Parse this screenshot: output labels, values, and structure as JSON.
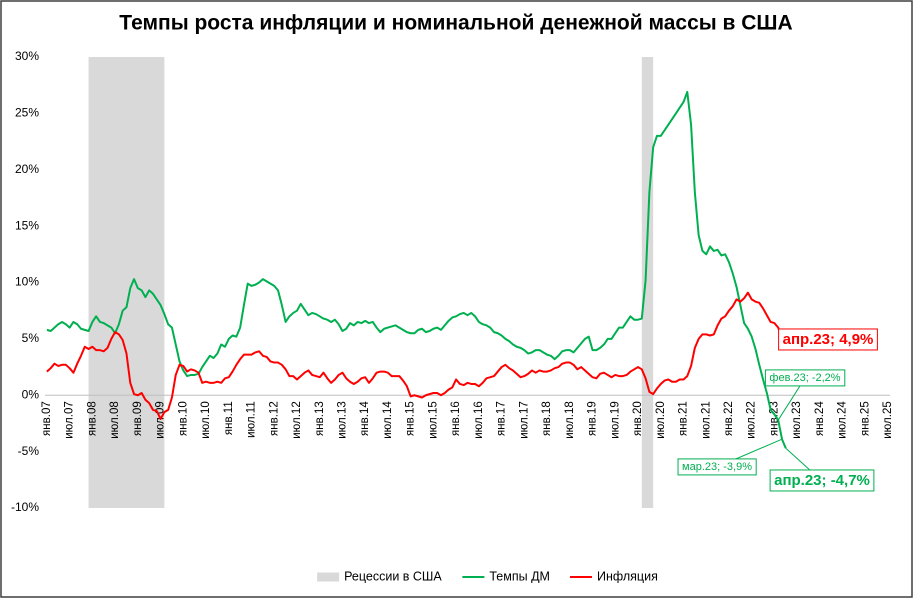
{
  "chart_data": {
    "type": "line",
    "title": "Темпы роста инфляции и номинальной денежной массы в США",
    "categories": [
      "янв.07",
      null,
      null,
      null,
      null,
      null,
      "июл.07",
      null,
      null,
      null,
      null,
      null,
      "янв.08",
      null,
      null,
      null,
      null,
      null,
      "июл.08",
      null,
      null,
      null,
      null,
      null,
      "янв.09",
      null,
      null,
      null,
      null,
      null,
      "июл.09",
      null,
      null,
      null,
      null,
      null,
      "янв.10",
      null,
      null,
      null,
      null,
      null,
      "июл.10",
      null,
      null,
      null,
      null,
      null,
      "янв.11",
      null,
      null,
      null,
      null,
      null,
      "июл.11",
      null,
      null,
      null,
      null,
      null,
      "янв.12",
      null,
      null,
      null,
      null,
      null,
      "июл.12",
      null,
      null,
      null,
      null,
      null,
      "янв.13",
      null,
      null,
      null,
      null,
      null,
      "июл.13",
      null,
      null,
      null,
      null,
      null,
      "янв.14",
      null,
      null,
      null,
      null,
      null,
      "июл.14",
      null,
      null,
      null,
      null,
      null,
      "янв.15",
      null,
      null,
      null,
      null,
      null,
      "июл.15",
      null,
      null,
      null,
      null,
      null,
      "янв.16",
      null,
      null,
      null,
      null,
      null,
      "июл.16",
      null,
      null,
      null,
      null,
      null,
      "янв.17",
      null,
      null,
      null,
      null,
      null,
      "июл.17",
      null,
      null,
      null,
      null,
      null,
      "янв.18",
      null,
      null,
      null,
      null,
      null,
      "июл.18",
      null,
      null,
      null,
      null,
      null,
      "янв.19",
      null,
      null,
      null,
      null,
      null,
      "июл.19",
      null,
      null,
      null,
      null,
      null,
      "янв.20",
      null,
      null,
      null,
      null,
      null,
      "июл.20",
      null,
      null,
      null,
      null,
      null,
      "янв.21",
      null,
      null,
      null,
      null,
      null,
      "июл.21",
      null,
      null,
      null,
      null,
      null,
      "янв.22",
      null,
      null,
      null,
      null,
      null,
      "июл.22",
      null,
      null,
      null,
      null,
      null,
      "янв.23",
      null,
      null,
      null,
      null,
      null,
      "июл.23",
      null,
      null,
      null,
      null,
      null,
      "янв.24",
      null,
      null,
      null,
      null,
      null,
      "июл.24",
      null,
      null,
      null,
      null,
      null,
      "янв.25",
      null,
      null,
      null,
      null,
      null,
      "июл.25"
    ],
    "recession": {
      "name": "Рецессии в США",
      "color": "#d9d9d9",
      "spans": [
        [
          11,
          30
        ],
        [
          157,
          159
        ]
      ]
    },
    "series": [
      {
        "name": "Темпы ДМ",
        "color": "#00b050",
        "values": [
          5.8,
          5.7,
          6.0,
          6.3,
          6.5,
          6.3,
          6.0,
          6.5,
          6.3,
          5.9,
          5.8,
          5.7,
          6.5,
          7.0,
          6.5,
          6.4,
          6.2,
          6.0,
          5.5,
          6.3,
          7.5,
          7.8,
          9.5,
          10.3,
          9.5,
          9.3,
          8.7,
          9.3,
          9.0,
          8.5,
          8.0,
          7.2,
          6.3,
          6.0,
          4.5,
          3.0,
          2.2,
          1.7,
          1.8,
          1.8,
          1.9,
          2.5,
          3.0,
          3.5,
          3.3,
          3.7,
          4.5,
          4.3,
          5.0,
          5.3,
          5.2,
          6.0,
          8.0,
          9.9,
          9.7,
          9.8,
          10.0,
          10.3,
          10.1,
          9.9,
          9.7,
          9.3,
          8.0,
          6.5,
          7.0,
          7.3,
          7.5,
          8.1,
          7.6,
          7.1,
          7.3,
          7.2,
          7.0,
          6.8,
          6.7,
          6.5,
          6.7,
          6.3,
          5.7,
          5.9,
          6.4,
          6.2,
          6.5,
          6.4,
          6.6,
          6.4,
          6.5,
          6.0,
          5.6,
          5.9,
          6.0,
          6.1,
          6.2,
          6.0,
          5.8,
          5.6,
          5.5,
          5.5,
          5.8,
          5.9,
          5.6,
          5.7,
          5.9,
          6.0,
          5.8,
          6.2,
          6.6,
          6.9,
          7.0,
          7.2,
          7.3,
          7.1,
          7.3,
          7.0,
          6.5,
          6.3,
          6.2,
          6.0,
          5.6,
          5.5,
          5.3,
          5.0,
          4.8,
          4.5,
          4.3,
          4.2,
          4.0,
          3.7,
          3.8,
          4.0,
          4.0,
          3.8,
          3.6,
          3.5,
          3.2,
          3.5,
          3.9,
          4.0,
          4.0,
          3.8,
          4.2,
          4.6,
          5.0,
          5.2,
          4.0,
          4.0,
          4.2,
          4.5,
          5.0,
          5.0,
          5.5,
          6.0,
          6.0,
          6.5,
          7.0,
          6.7,
          6.7,
          6.8,
          10.2,
          18.0,
          22.0,
          23.0,
          23.0,
          23.5,
          24.0,
          24.5,
          25.0,
          25.5,
          26.0,
          26.9,
          24.0,
          18.0,
          14.2,
          12.8,
          12.5,
          13.2,
          12.8,
          12.9,
          12.4,
          12.5,
          11.8,
          10.8,
          9.6,
          8.0,
          6.4,
          5.9,
          5.2,
          4.1,
          2.7,
          1.4,
          0.2,
          -1.3,
          -1.7,
          -2.2,
          -3.9,
          -4.7,
          null,
          null,
          null,
          null,
          null,
          null,
          null,
          null,
          null,
          null,
          null,
          null,
          null,
          null,
          null,
          null,
          null,
          null,
          null,
          null,
          null,
          null,
          null,
          null,
          null,
          null,
          null
        ],
        "value_labels": [
          null,
          null,
          null,
          null,
          null,
          null,
          null,
          null,
          null,
          null,
          null,
          null,
          null,
          null,
          null,
          null,
          null,
          null,
          null,
          null,
          null,
          null,
          null,
          null,
          null,
          null,
          null,
          null,
          null,
          null,
          null,
          null,
          null,
          null,
          null,
          null,
          null,
          null,
          null,
          null,
          null,
          null,
          null,
          null,
          null,
          null,
          null,
          null,
          null,
          null,
          null,
          null,
          null,
          null,
          null,
          null,
          null,
          null,
          null,
          null,
          null,
          null,
          null,
          null,
          null,
          null,
          null,
          null,
          null,
          null,
          null,
          null,
          null,
          null,
          null,
          null,
          null,
          null,
          null,
          null,
          null,
          null,
          null,
          null,
          null,
          null,
          null,
          null,
          null,
          null,
          null,
          null,
          null,
          null,
          null,
          null,
          null,
          null,
          null,
          null,
          null,
          null,
          null,
          null,
          null,
          null,
          null,
          null,
          null,
          null,
          null,
          null,
          null,
          null,
          null,
          null,
          null,
          null,
          null,
          null,
          null,
          null,
          null,
          null,
          null,
          null,
          null,
          null,
          null,
          null,
          null,
          null,
          null,
          null,
          null,
          null,
          null,
          null,
          null,
          null,
          null,
          null,
          null,
          null,
          null,
          null,
          null,
          null,
          null,
          null,
          null,
          null,
          null,
          null,
          null,
          null,
          null,
          null,
          null,
          null,
          null,
          null,
          null,
          null,
          null,
          null,
          null,
          null,
          null,
          null,
          null,
          null,
          null,
          null,
          null,
          null,
          null,
          null,
          null,
          null,
          null,
          null,
          null,
          null,
          null,
          null,
          null,
          null,
          null,
          null,
          null,
          null,
          null,
          "фев.23; -2,2%",
          "мар.23; -3,9%",
          "апр.23; -4,7%",
          null,
          null,
          null,
          null,
          null,
          null,
          null,
          null,
          null,
          null,
          null,
          null,
          null,
          null,
          null,
          null,
          null,
          null,
          null,
          null,
          null,
          null,
          null,
          null,
          null,
          null,
          null
        ]
      },
      {
        "name": "Инфляция",
        "color": "#ff0000",
        "values": [
          2.1,
          2.4,
          2.8,
          2.6,
          2.7,
          2.7,
          2.4,
          2.0,
          2.8,
          3.5,
          4.3,
          4.1,
          4.3,
          4.0,
          4.0,
          3.9,
          4.2,
          5.0,
          5.6,
          5.4,
          4.9,
          3.7,
          1.1,
          0.1,
          0.0,
          0.2,
          -0.4,
          -0.7,
          -1.3,
          -1.4,
          -2.1,
          -1.5,
          -1.3,
          -0.2,
          1.8,
          2.7,
          2.6,
          2.1,
          2.3,
          2.2,
          2.0,
          1.1,
          1.2,
          1.1,
          1.1,
          1.2,
          1.1,
          1.5,
          1.6,
          2.1,
          2.7,
          3.2,
          3.6,
          3.6,
          3.6,
          3.8,
          3.9,
          3.5,
          3.4,
          3.0,
          2.9,
          2.9,
          2.7,
          2.3,
          1.7,
          1.7,
          1.4,
          1.7,
          2.0,
          2.2,
          1.8,
          1.7,
          1.6,
          2.0,
          1.5,
          1.1,
          1.4,
          1.8,
          2.0,
          1.5,
          1.2,
          1.0,
          1.2,
          1.5,
          1.6,
          1.1,
          1.5,
          2.0,
          2.1,
          2.1,
          2.0,
          1.7,
          1.7,
          1.7,
          1.3,
          0.8,
          -0.1,
          0.0,
          -0.1,
          -0.2,
          0.0,
          0.1,
          0.2,
          0.2,
          0.0,
          0.2,
          0.5,
          0.7,
          1.4,
          1.0,
          0.9,
          1.1,
          1.0,
          1.0,
          0.8,
          1.1,
          1.5,
          1.6,
          1.7,
          2.1,
          2.5,
          2.7,
          2.4,
          2.2,
          1.9,
          1.6,
          1.7,
          1.9,
          2.2,
          2.0,
          2.2,
          2.1,
          2.1,
          2.2,
          2.4,
          2.5,
          2.8,
          2.9,
          2.9,
          2.7,
          2.3,
          2.5,
          2.2,
          1.9,
          1.6,
          1.5,
          1.9,
          2.0,
          1.8,
          1.6,
          1.8,
          1.7,
          1.7,
          1.8,
          2.1,
          2.3,
          2.5,
          2.3,
          1.5,
          0.3,
          0.1,
          0.6,
          1.0,
          1.3,
          1.4,
          1.2,
          1.2,
          1.4,
          1.4,
          1.7,
          2.6,
          4.2,
          5.0,
          5.4,
          5.4,
          5.3,
          5.4,
          6.2,
          6.8,
          7.0,
          7.5,
          7.9,
          8.5,
          8.3,
          8.6,
          9.1,
          8.5,
          8.3,
          8.2,
          7.7,
          7.1,
          6.5,
          6.4,
          6.0,
          5.0,
          4.9,
          null,
          null,
          null,
          null,
          null,
          null,
          null,
          null,
          null,
          null,
          null,
          null,
          null,
          null,
          null,
          null,
          null,
          null,
          null,
          null,
          null,
          null,
          null,
          null,
          null,
          null,
          null
        ],
        "value_labels": [
          null,
          null,
          null,
          null,
          null,
          null,
          null,
          null,
          null,
          null,
          null,
          null,
          null,
          null,
          null,
          null,
          null,
          null,
          null,
          null,
          null,
          null,
          null,
          null,
          null,
          null,
          null,
          null,
          null,
          null,
          null,
          null,
          null,
          null,
          null,
          null,
          null,
          null,
          null,
          null,
          null,
          null,
          null,
          null,
          null,
          null,
          null,
          null,
          null,
          null,
          null,
          null,
          null,
          null,
          null,
          null,
          null,
          null,
          null,
          null,
          null,
          null,
          null,
          null,
          null,
          null,
          null,
          null,
          null,
          null,
          null,
          null,
          null,
          null,
          null,
          null,
          null,
          null,
          null,
          null,
          null,
          null,
          null,
          null,
          null,
          null,
          null,
          null,
          null,
          null,
          null,
          null,
          null,
          null,
          null,
          null,
          null,
          null,
          null,
          null,
          null,
          null,
          null,
          null,
          null,
          null,
          null,
          null,
          null,
          null,
          null,
          null,
          null,
          null,
          null,
          null,
          null,
          null,
          null,
          null,
          null,
          null,
          null,
          null,
          null,
          null,
          null,
          null,
          null,
          null,
          null,
          null,
          null,
          null,
          null,
          null,
          null,
          null,
          null,
          null,
          null,
          null,
          null,
          null,
          null,
          null,
          null,
          null,
          null,
          null,
          null,
          null,
          null,
          null,
          null,
          null,
          null,
          null,
          null,
          null,
          null,
          null,
          null,
          null,
          null,
          null,
          null,
          null,
          null,
          null,
          null,
          null,
          null,
          null,
          null,
          null,
          null,
          null,
          null,
          null,
          null,
          null,
          null,
          null,
          null,
          null,
          null,
          null,
          null,
          null,
          null,
          null,
          null,
          null,
          null,
          "апр.23; 4,9%",
          null,
          null,
          null,
          null,
          null,
          null,
          null,
          null,
          null,
          null,
          null,
          null,
          null,
          null,
          null,
          null,
          null,
          null,
          null,
          null,
          null,
          null,
          null,
          null,
          null,
          null,
          null
        ]
      }
    ],
    "ylim": [
      -10,
      30
    ],
    "yticks": [
      {
        "value": -10,
        "label": "-10%"
      },
      {
        "value": -5,
        "label": "-5%"
      },
      {
        "value": 0,
        "label": "0%"
      },
      {
        "value": 5,
        "label": "5%"
      },
      {
        "value": 10,
        "label": "10%"
      },
      {
        "value": 15,
        "label": "15%"
      },
      {
        "value": 20,
        "label": "20%"
      },
      {
        "value": 25,
        "label": "25%"
      },
      {
        "value": 30,
        "label": "30%"
      }
    ],
    "grid": false,
    "legend": "bottom"
  }
}
